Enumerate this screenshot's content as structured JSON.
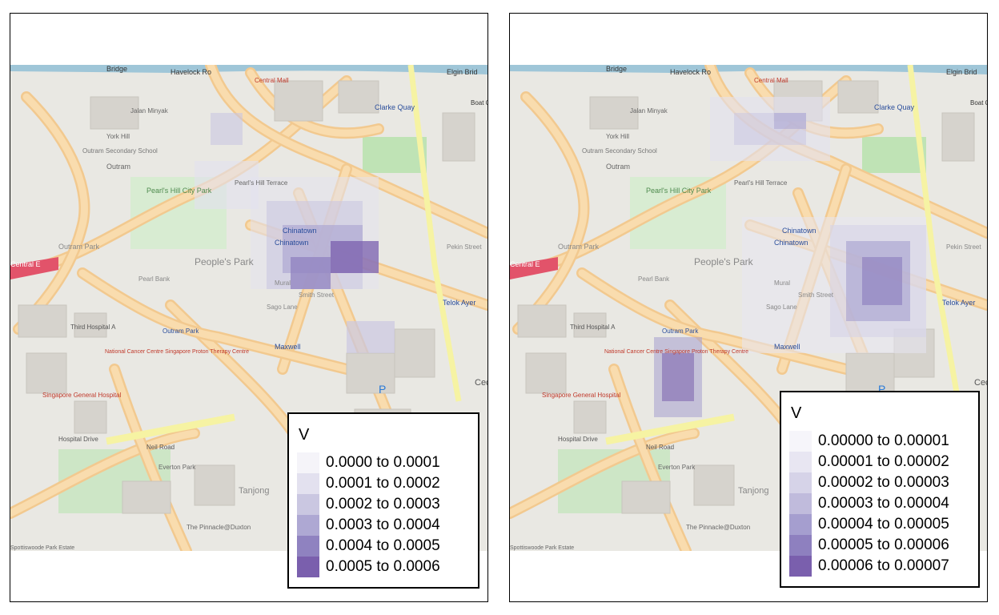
{
  "panels": [
    {
      "legend": {
        "title": "V",
        "items": [
          {
            "label": "0.0000 to 0.0001",
            "color": "#f5f4f9"
          },
          {
            "label": "0.0001 to 0.0002",
            "color": "#e3e1ef"
          },
          {
            "label": "0.0002 to 0.0003",
            "color": "#cac7e1"
          },
          {
            "label": "0.0003 to 0.0004",
            "color": "#aea8d3"
          },
          {
            "label": "0.0004 to 0.0005",
            "color": "#8f82c0"
          },
          {
            "label": "0.0005 to 0.0006",
            "color": "#7a5fad"
          }
        ]
      }
    },
    {
      "legend": {
        "title": "V",
        "items": [
          {
            "label": "0.00000 to 0.00001",
            "color": "#f6f5fa"
          },
          {
            "label": "0.00001 to 0.00002",
            "color": "#e8e6f2"
          },
          {
            "label": "0.00002 to 0.00003",
            "color": "#d6d3e8"
          },
          {
            "label": "0.00003 to 0.00004",
            "color": "#c0bbdc"
          },
          {
            "label": "0.00004 to 0.00005",
            "color": "#a59ecf"
          },
          {
            "label": "0.00005 to 0.00006",
            "color": "#8e80bf"
          },
          {
            "label": "0.00006 to 0.00007",
            "color": "#7a5fad"
          }
        ]
      }
    }
  ],
  "map_labels": {
    "bridge": "Bridge",
    "havelock": "Havelock Ro",
    "central_mall": "Central Mall",
    "clarke_quay": "Clarke Quay",
    "elgin": "Elgin Brid",
    "boat_quay": "Boat Quay",
    "jalan_minyak": "Jalan Minyak",
    "york_hill": "York Hill",
    "outram_secondary": "Outram Secondary School",
    "outram": "Outram",
    "pearls_hill_city_park": "Pearl's Hill City Park",
    "pearls_hill_terrace": "Pearl's Hill Terrace",
    "outram_park_road": "Outram Park",
    "chinatown": "Chinatown",
    "peoples_park": "People's Park",
    "pearl_bank": "Pearl Bank",
    "smith_street": "Smith Street",
    "sago_lane": "Sago Lane",
    "mural": "Mural",
    "telok_ayer": "Telok Ayer",
    "pekin_street": "Pekin Street",
    "outram_park_station": "Outram Park",
    "maxwell": "Maxwell",
    "central_exp": "Central E",
    "third_hospital": "Third Hospital A",
    "ncc": "National Cancer Centre Singapore Proton Therapy Centre",
    "sgh": "Singapore General Hospital",
    "hospital_drive": "Hospital Drive",
    "neil_road": "Neil Road",
    "everton_park": "Everton Park",
    "tanjong": "Tanjong",
    "pinnacle": "The Pinnacle@Duxton",
    "spottiswoode": "Spottiswoode Park Estate",
    "cecil": "Ceci",
    "p": "P"
  }
}
